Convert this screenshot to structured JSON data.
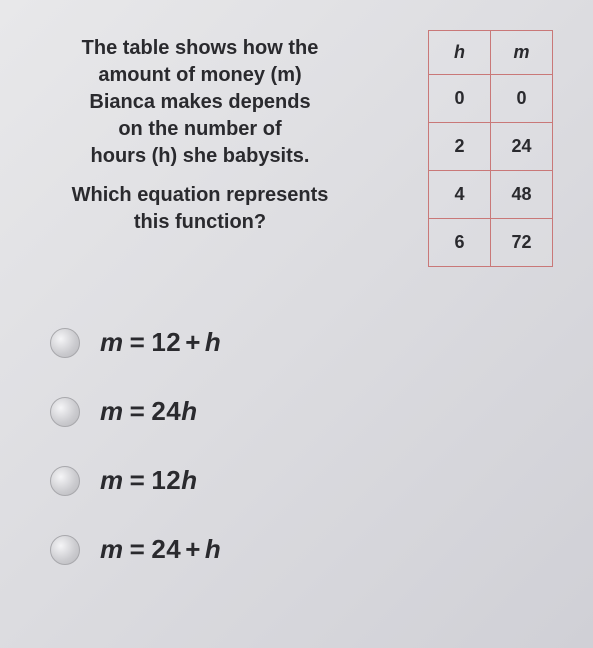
{
  "question": {
    "para1_line1": "The table shows how the",
    "para1_line2": "amount of money (m)",
    "para1_line3": "Bianca makes depends",
    "para1_line4": "on the number of",
    "para1_line5": "hours (h) she babysits.",
    "para2_line1": "Which equation represents",
    "para2_line2": "this function?"
  },
  "table": {
    "headers": {
      "col1": "h",
      "col2": "m"
    },
    "rows": [
      {
        "h": "0",
        "m": "0"
      },
      {
        "h": "2",
        "m": "24"
      },
      {
        "h": "4",
        "m": "48"
      },
      {
        "h": "6",
        "m": "72"
      }
    ],
    "border_color": "#c97878",
    "text_color": "#2a2a2e"
  },
  "options": [
    {
      "m": "m",
      "eq": "=",
      "num": "12",
      "op": "+",
      "var": "h"
    },
    {
      "m": "m",
      "eq": "=",
      "num": "24",
      "op": "",
      "var": "h"
    },
    {
      "m": "m",
      "eq": "=",
      "num": "12",
      "op": "",
      "var": "h"
    },
    {
      "m": "m",
      "eq": "=",
      "num": "24",
      "op": "+",
      "var": "h"
    }
  ],
  "colors": {
    "background": "#e0e0e4",
    "text": "#2a2a2e",
    "radio_fill": "#d8d8dc"
  }
}
